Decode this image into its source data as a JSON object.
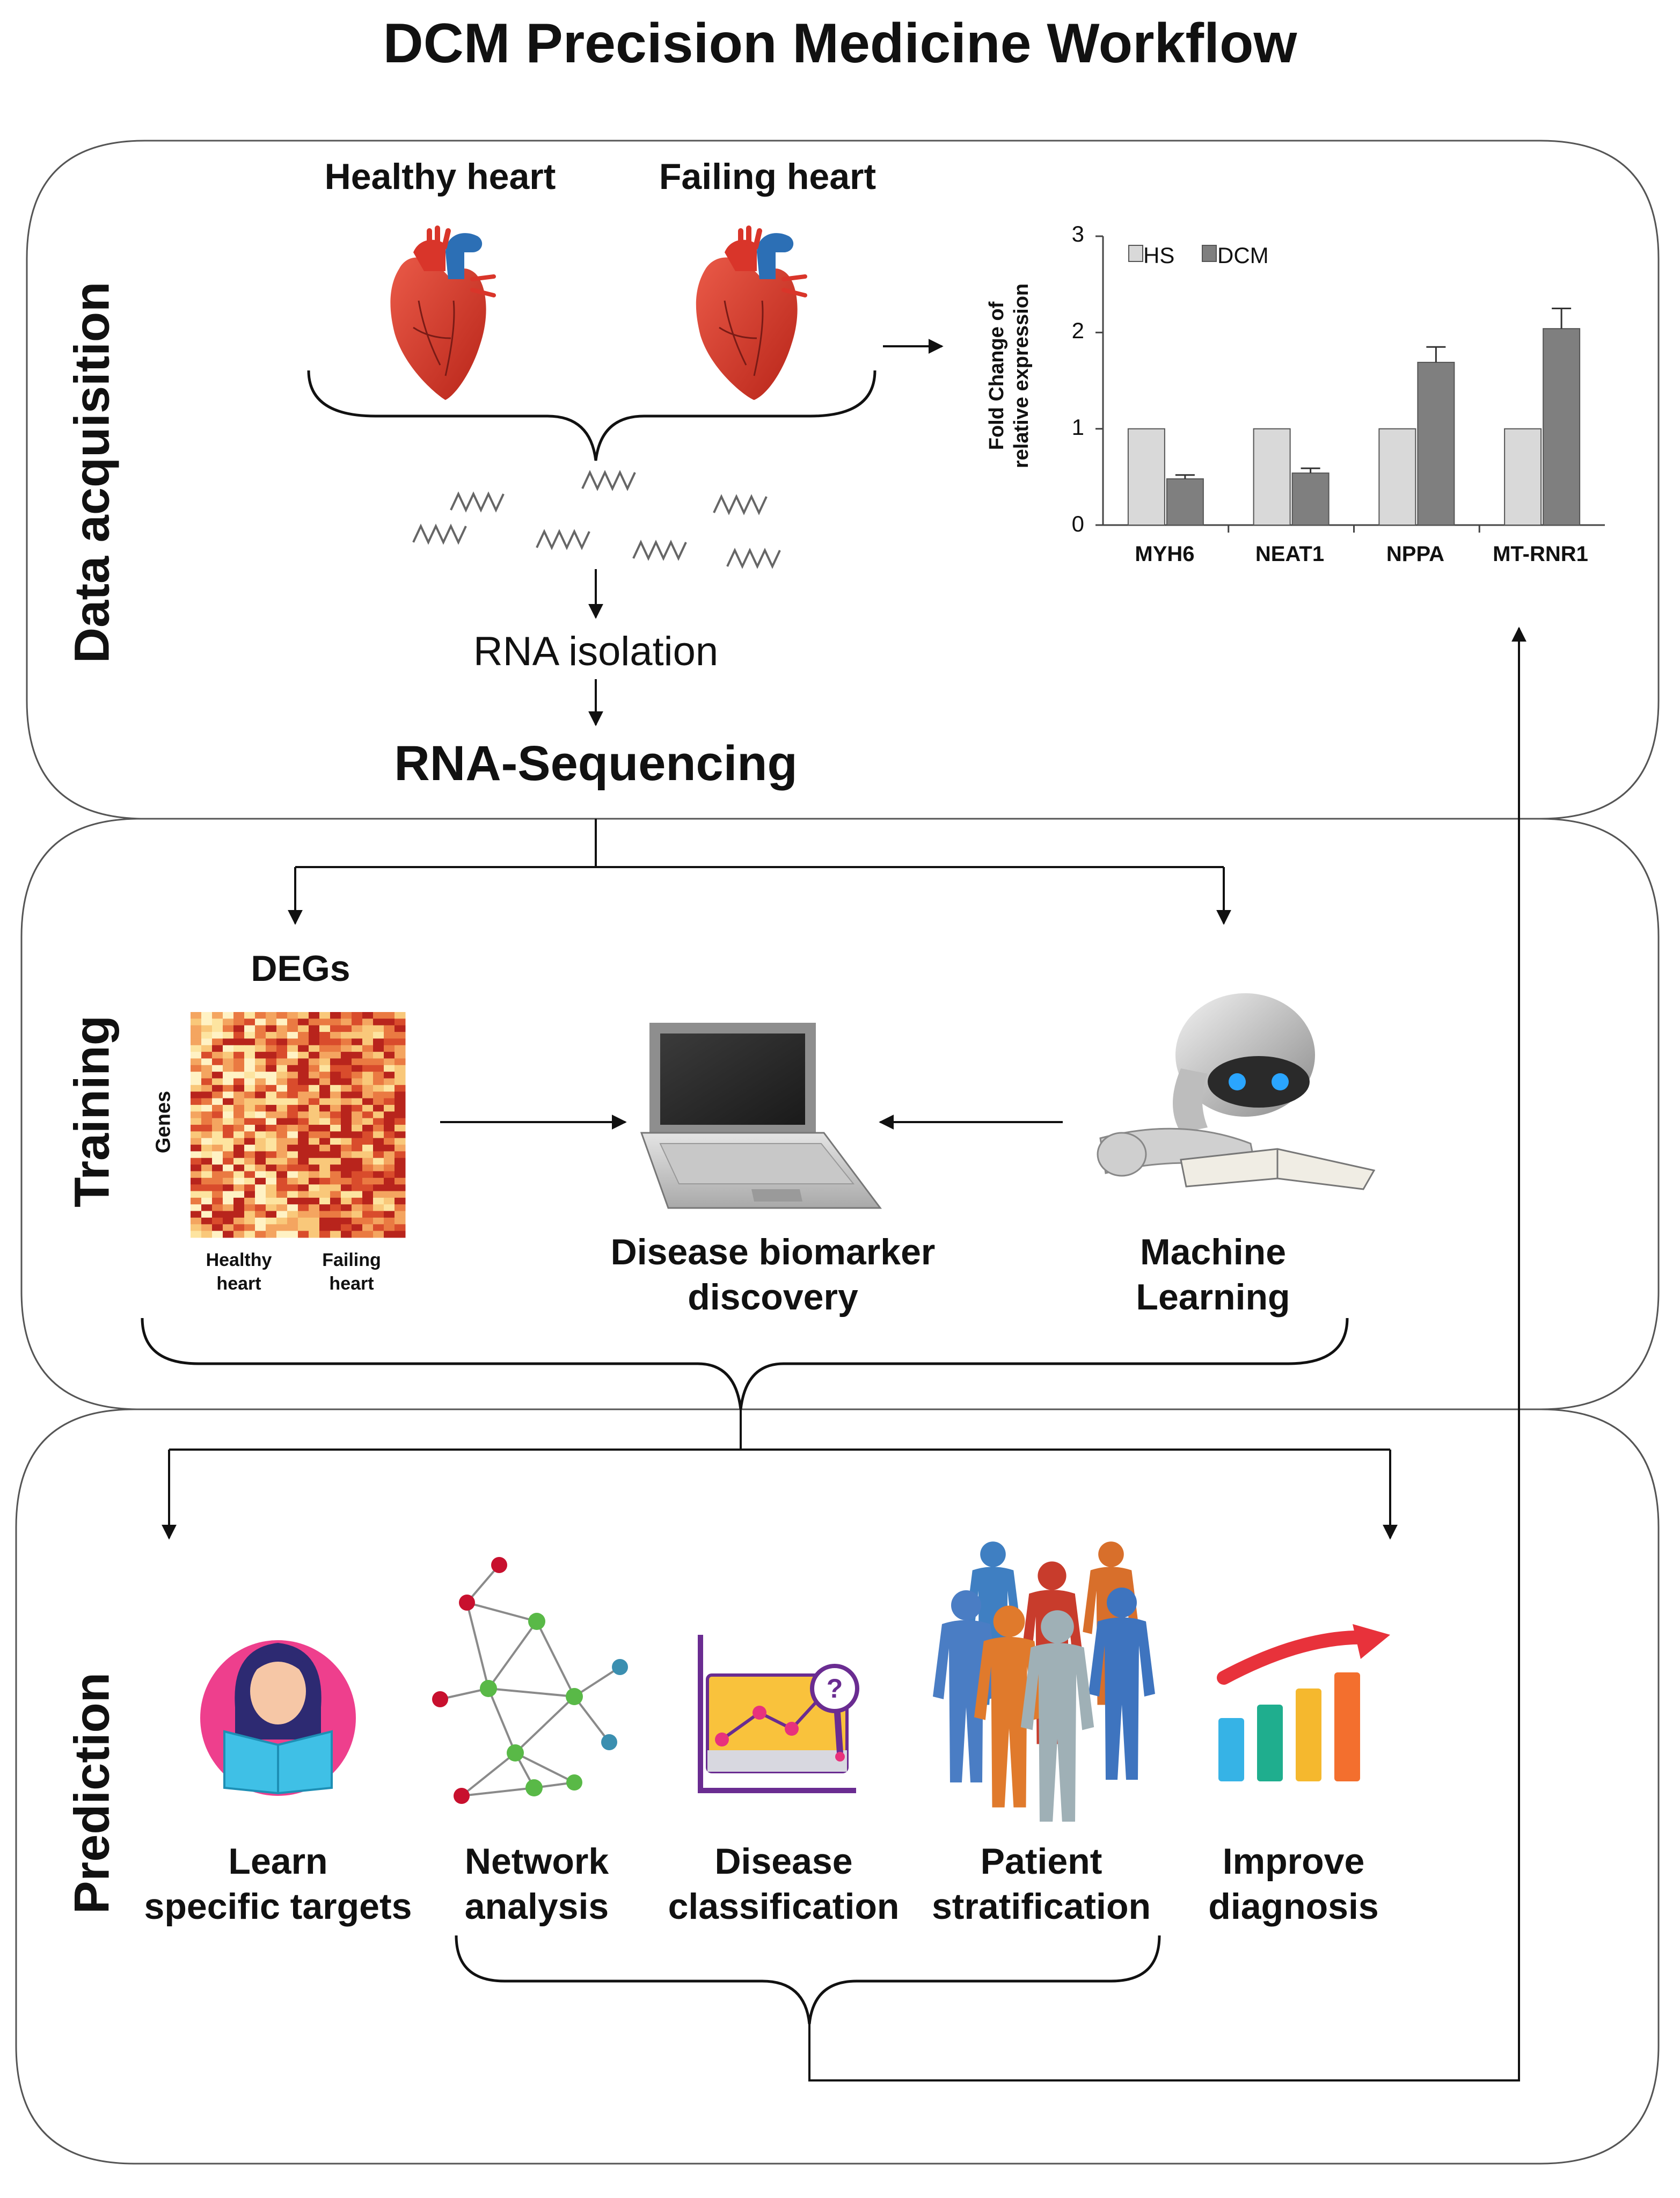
{
  "title": "DCM Precision Medicine Workflow",
  "sections": {
    "data_acquisition": {
      "label": "Data acquisition",
      "healthy_heart": "Healthy heart",
      "failing_heart": "Failing heart",
      "rna_isolation": "RNA isolation",
      "rna_sequencing": "RNA-Sequencing"
    },
    "training": {
      "label": "Training",
      "degs": "DEGs",
      "genes_axis": "Genes",
      "heatmap_healthy_line1": "Healthy",
      "heatmap_healthy_line2": "heart",
      "heatmap_failing_line1": "Failing",
      "heatmap_failing_line2": "heart",
      "biomarker_line1": "Disease biomarker",
      "biomarker_line2": "discovery",
      "ml_line1": "Machine",
      "ml_line2": "Learning"
    },
    "prediction": {
      "label": "Prediction",
      "items": [
        {
          "line1": "Learn",
          "line2": "specific targets"
        },
        {
          "line1": "Network",
          "line2": "analysis"
        },
        {
          "line1": "Disease",
          "line2": "classification"
        },
        {
          "line1": "Patient",
          "line2": "stratification"
        },
        {
          "line1": "Improve",
          "line2": "diagnosis"
        }
      ]
    }
  },
  "colors": {
    "hs_bar": "#d9d9d9",
    "dcm_bar": "#7f7f7f",
    "heart": "#d9352a",
    "vessel": "#2c6fb5"
  },
  "chart_data": {
    "type": "bar",
    "ylabel_line1": "Fold Change of",
    "ylabel_line2": "relative expression",
    "categories": [
      "MYH6",
      "NEAT1",
      "NPPA",
      "MT-RNR1"
    ],
    "series": [
      {
        "name": "HS",
        "values": [
          1,
          1,
          1,
          1
        ],
        "errors": [
          0,
          0,
          0,
          0
        ]
      },
      {
        "name": "DCM",
        "values": [
          0.48,
          0.54,
          1.69,
          2.04
        ],
        "errors": [
          0.04,
          0.05,
          0.16,
          0.21
        ]
      }
    ],
    "ylim": [
      0,
      3
    ],
    "yticks": [
      "0",
      "1",
      "2",
      "3"
    ],
    "legend_position": "top-left",
    "grid": false
  }
}
